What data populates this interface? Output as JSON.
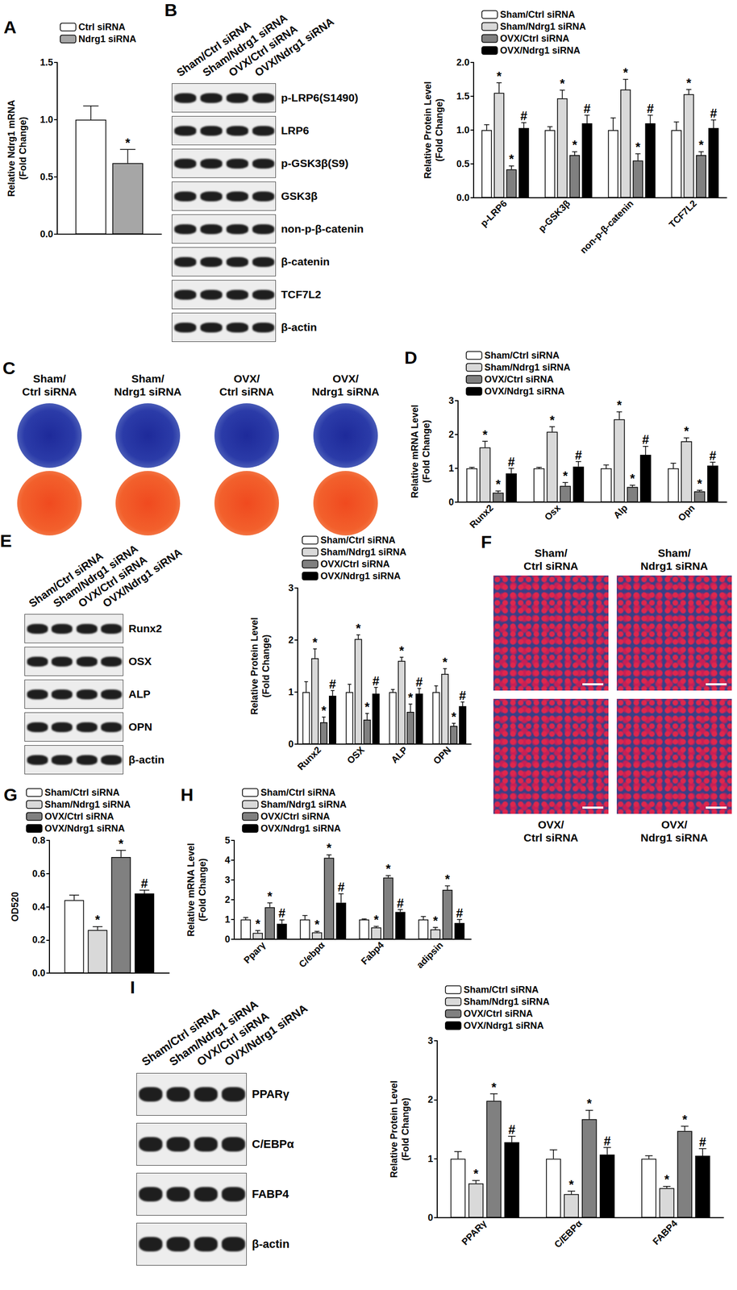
{
  "chart_data": [
    {
      "type": "bar",
      "title": "A",
      "ylabel": "Relative Ndrg1 mRNA\n(Fold Change)",
      "categories": [
        null
      ],
      "series": [
        {
          "name": "Ctrl siRNA",
          "color": "#ffffff",
          "values": [
            1.0
          ],
          "errors": [
            0.12
          ]
        },
        {
          "name": "Ndrg1 siRNA",
          "color": "#a6a6a6",
          "values": [
            0.62
          ],
          "errors": [
            0.12
          ],
          "annotations": [
            "*"
          ]
        }
      ],
      "ylim": [
        0,
        1.5
      ],
      "yticks": [
        {
          "value": 0,
          "label": "0.0"
        },
        0.5,
        {
          "value": 1,
          "label": "1.0"
        },
        1.5
      ],
      "grid": false,
      "legend": "top-left"
    },
    {
      "type": "bar",
      "ylabel": "Relative Protein Level\n(Fold Change)",
      "categories": [
        "p-LRP6",
        "p-GSK3β",
        "non-p-β-catenin",
        "TCF7L2"
      ],
      "series": [
        {
          "name": "Sham/Ctrl siRNA",
          "color": "#ffffff",
          "values": [
            1.0,
            1.0,
            1.0,
            1.0
          ],
          "errors": [
            0.08,
            0.05,
            0.18,
            0.12
          ]
        },
        {
          "name": "Sham/Ndrg1 siRNA",
          "color": "#d9d9d9",
          "values": [
            1.55,
            1.47,
            1.6,
            1.53
          ],
          "errors": [
            0.15,
            0.12,
            0.15,
            0.07
          ],
          "annotations": [
            "*",
            "*",
            "*",
            "*"
          ]
        },
        {
          "name": "OVX/Ctrl siRNA",
          "color": "#808080",
          "values": [
            0.42,
            0.63,
            0.55,
            0.63
          ],
          "errors": [
            0.05,
            0.05,
            0.1,
            0.05
          ],
          "annotations": [
            "*",
            "*",
            "*",
            "*"
          ]
        },
        {
          "name": "OVX/Ndrg1 siRNA",
          "color": "#000000",
          "values": [
            1.03,
            1.1,
            1.1,
            1.03
          ],
          "errors": [
            0.08,
            0.12,
            0.12,
            0.12
          ],
          "annotations": [
            "#",
            "#",
            "#",
            "#"
          ]
        }
      ],
      "ylim": [
        0,
        2
      ],
      "yticks": [
        {
          "value": 0,
          "label": "0.0"
        },
        0.5,
        {
          "value": 1,
          "label": "1.0"
        },
        1.5,
        {
          "value": 2,
          "label": "2.0"
        }
      ],
      "grid": false,
      "legend": "top-left"
    },
    {
      "type": "bar",
      "title": "D",
      "ylabel": "Relative mRNA Level\n(Fold Change)",
      "categories": [
        "Runx2",
        "Osx",
        "Alp",
        "Opn"
      ],
      "series": [
        {
          "name": "Sham/Ctrl siRNA",
          "color": "#ffffff",
          "values": [
            1.0,
            1.0,
            1.0,
            1.0
          ],
          "errors": [
            0.03,
            0.03,
            0.1,
            0.15
          ]
        },
        {
          "name": "Sham/Ndrg1 siRNA",
          "color": "#d9d9d9",
          "values": [
            1.62,
            2.08,
            2.45,
            1.8
          ],
          "errors": [
            0.18,
            0.15,
            0.22,
            0.1
          ],
          "annotations": [
            "*",
            "*",
            "*",
            "*"
          ]
        },
        {
          "name": "OVX/Ctrl siRNA",
          "color": "#808080",
          "values": [
            0.28,
            0.48,
            0.45,
            0.32
          ],
          "errors": [
            0.05,
            0.1,
            0.05,
            0.03
          ],
          "annotations": [
            "*",
            "*",
            "*",
            "*"
          ]
        },
        {
          "name": "OVX/Ndrg1 siRNA",
          "color": "#000000",
          "values": [
            0.85,
            1.05,
            1.4,
            1.08
          ],
          "errors": [
            0.15,
            0.15,
            0.25,
            0.1
          ],
          "annotations": [
            "#",
            "#",
            "#",
            "#"
          ]
        }
      ],
      "ylim": [
        0,
        3
      ],
      "yticks": [
        0,
        1,
        2,
        3
      ],
      "grid": false,
      "legend": "top-left"
    },
    {
      "type": "bar",
      "ylabel": "Relative Protein Level\n(Fold Change)",
      "categories": [
        "Runx2",
        "OSX",
        "ALP",
        "OPN"
      ],
      "series": [
        {
          "name": "Sham/Ctrl siRNA",
          "color": "#ffffff",
          "values": [
            1.0,
            1.0,
            1.0,
            1.0
          ],
          "errors": [
            0.2,
            0.15,
            0.05,
            0.12
          ]
        },
        {
          "name": "Sham/Ndrg1 siRNA",
          "color": "#d9d9d9",
          "values": [
            1.65,
            2.02,
            1.6,
            1.35
          ],
          "errors": [
            0.18,
            0.08,
            0.07,
            0.1
          ],
          "annotations": [
            "*",
            "*",
            "*",
            "*"
          ]
        },
        {
          "name": "OVX/Ctrl siRNA",
          "color": "#808080",
          "values": [
            0.42,
            0.47,
            0.62,
            0.35
          ],
          "errors": [
            0.1,
            0.12,
            0.15,
            0.05
          ],
          "annotations": [
            "*",
            "*",
            "*",
            "*"
          ]
        },
        {
          "name": "OVX/Ndrg1 siRNA",
          "color": "#000000",
          "values": [
            0.93,
            0.97,
            0.97,
            0.73
          ],
          "errors": [
            0.1,
            0.12,
            0.1,
            0.08
          ],
          "annotations": [
            "#",
            "#",
            "#",
            "#"
          ]
        }
      ],
      "ylim": [
        0,
        3
      ],
      "yticks": [
        0,
        1,
        2,
        3
      ],
      "grid": false,
      "legend": "top-left"
    },
    {
      "type": "bar",
      "title": "G",
      "ylabel": "OD520",
      "categories": [
        null
      ],
      "series": [
        {
          "name": "Sham/Ctrl siRNA",
          "color": "#ffffff",
          "values": [
            0.44
          ],
          "errors": [
            0.03
          ]
        },
        {
          "name": "Sham/Ndrg1 siRNA",
          "color": "#d9d9d9",
          "values": [
            0.26
          ],
          "errors": [
            0.02
          ],
          "annotations": [
            "*"
          ]
        },
        {
          "name": "OVX/Ctrl siRNA",
          "color": "#808080",
          "values": [
            0.7
          ],
          "errors": [
            0.04
          ],
          "annotations": [
            "*"
          ]
        },
        {
          "name": "OVX/Ndrg1 siRNA",
          "color": "#000000",
          "values": [
            0.48
          ],
          "errors": [
            0.02
          ],
          "annotations": [
            "#"
          ]
        }
      ],
      "ylim": [
        0,
        0.8
      ],
      "yticks": [
        {
          "value": 0,
          "label": "0.0"
        },
        0.2,
        0.4,
        0.6,
        0.8
      ],
      "grid": false,
      "legend": "top-left"
    },
    {
      "type": "bar",
      "title": "H",
      "ylabel": "Relative mRNA Level\n(Fold Change)",
      "categories": [
        "Pparγ",
        "C/ebpα",
        "Fabp4",
        "adipsin"
      ],
      "series": [
        {
          "name": "Sham/Ctrl siRNA",
          "color": "#ffffff",
          "values": [
            1.0,
            1.0,
            1.0,
            1.0
          ],
          "errors": [
            0.1,
            0.2,
            0.03,
            0.15
          ]
        },
        {
          "name": "Sham/Ndrg1 siRNA",
          "color": "#d9d9d9",
          "values": [
            0.32,
            0.35,
            0.6,
            0.5
          ],
          "errors": [
            0.12,
            0.05,
            0.05,
            0.1
          ],
          "annotations": [
            "*",
            "*",
            "*",
            "*"
          ]
        },
        {
          "name": "OVX/Ctrl siRNA",
          "color": "#808080",
          "values": [
            1.62,
            4.12,
            3.12,
            2.5
          ],
          "errors": [
            0.22,
            0.15,
            0.1,
            0.2
          ],
          "annotations": [
            "*",
            "*",
            "*",
            "*"
          ]
        },
        {
          "name": "OVX/Ndrg1 siRNA",
          "color": "#000000",
          "values": [
            0.78,
            1.85,
            1.38,
            0.82
          ],
          "errors": [
            0.2,
            0.45,
            0.12,
            0.18
          ],
          "annotations": [
            "#",
            "#",
            "#",
            "#"
          ]
        }
      ],
      "ylim": [
        0,
        5
      ],
      "yticks": [
        0,
        1,
        2,
        3,
        4,
        5
      ],
      "grid": false,
      "legend": "top-left"
    },
    {
      "type": "bar",
      "ylabel": "Relative Protein Level\n(Fold Change)",
      "categories": [
        "PPARγ",
        "C/EBPα",
        "FABP4"
      ],
      "series": [
        {
          "name": "Sham/Ctrl siRNA",
          "color": "#ffffff",
          "values": [
            1.0,
            1.0,
            1.0
          ],
          "errors": [
            0.12,
            0.15,
            0.05
          ]
        },
        {
          "name": "Sham/Ndrg1 siRNA",
          "color": "#d9d9d9",
          "values": [
            0.58,
            0.4,
            0.5
          ],
          "errors": [
            0.05,
            0.05,
            0.03
          ],
          "annotations": [
            "*",
            "*",
            "*"
          ]
        },
        {
          "name": "OVX/Ctrl siRNA",
          "color": "#808080",
          "values": [
            1.98,
            1.67,
            1.47
          ],
          "errors": [
            0.12,
            0.15,
            0.08
          ],
          "annotations": [
            "*",
            "*",
            "*"
          ]
        },
        {
          "name": "OVX/Ndrg1 siRNA",
          "color": "#000000",
          "values": [
            1.28,
            1.07,
            1.05
          ],
          "errors": [
            0.1,
            0.12,
            0.12
          ],
          "annotations": [
            "#",
            "#",
            "#"
          ]
        }
      ],
      "ylim": [
        0,
        3
      ],
      "yticks": [
        0,
        1,
        2,
        3
      ],
      "grid": false,
      "legend": "top-left"
    }
  ],
  "blots": [
    {
      "letter": "B",
      "lanes": [
        "Sham/Ctrl siRNA",
        "Sham/Ndrg1 siRNA",
        "OVX/Ctrl siRNA",
        "OVX/Ndrg1 siRNA"
      ],
      "rows": [
        "p-LRP6(S1490)",
        "LRP6",
        "p-GSK3β(S9)",
        "GSK3β",
        "non-p-β-catenin",
        "β-catenin",
        "TCF7L2",
        "β-actin"
      ]
    },
    {
      "letter": "E",
      "lanes": [
        "Sham/Ctrl siRNA",
        "Sham/Ndrg1 siRNA",
        "OVX/Ctrl siRNA",
        "OVX/Ndrg1 siRNA"
      ],
      "rows": [
        "Runx2",
        "OSX",
        "ALP",
        "OPN",
        "β-actin"
      ]
    },
    {
      "letter": "I",
      "lanes": [
        "Sham/Ctrl siRNA",
        "Sham/Ndrg1 siRNA",
        "OVX/Ctrl siRNA",
        "OVX/Ndrg1 siRNA"
      ],
      "rows": [
        "PPARγ",
        "C/EBPα",
        "FABP4",
        "β-actin"
      ]
    }
  ],
  "images": [
    {
      "letter": "C",
      "labels": [
        "Sham/\nCtrl siRNA",
        "Sham/\nNdrg1 siRNA",
        "OVX/\nCtrl siRNA",
        "OVX/\nNdrg1 siRNA"
      ]
    },
    {
      "letter": "F",
      "labels": [
        "Sham/\nCtrl siRNA",
        "Sham/\nNdrg1 siRNA",
        "OVX/\nCtrl siRNA",
        "OVX/\nNdrg1 siRNA"
      ]
    }
  ]
}
